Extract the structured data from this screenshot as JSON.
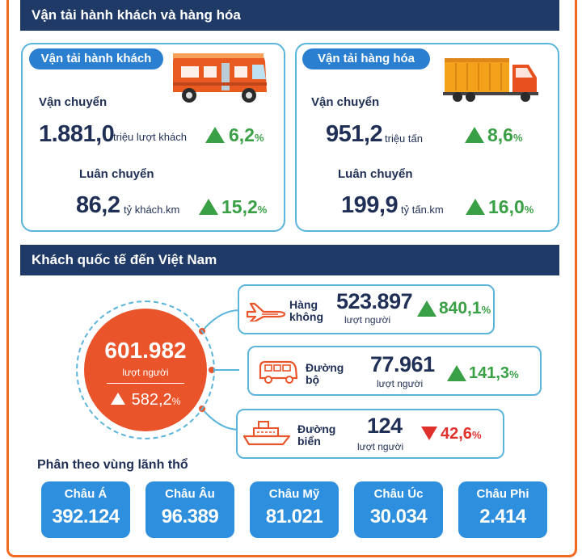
{
  "transport": {
    "header": "Vận tải hành khách và hàng hóa",
    "passenger": {
      "title": "Vận tải hành khách",
      "carried_label": "Vận chuyển",
      "carried_value": "1.881,0",
      "carried_unit": "triệu lượt khách",
      "carried_change": "6,2",
      "rotation_label": "Luân chuyển",
      "rotation_value": "86,2",
      "rotation_unit": "tỷ khách.km",
      "rotation_change": "15,2"
    },
    "cargo": {
      "title": "Vận tải hàng hóa",
      "carried_label": "Vận chuyển",
      "carried_value": "951,2",
      "carried_unit": "triệu tấn",
      "carried_change": "8,6",
      "rotation_label": "Luân chuyển",
      "rotation_value": "199,9",
      "rotation_unit": "tỷ tấn.km",
      "rotation_change": "16,0"
    },
    "pct_sign": "%"
  },
  "visitors": {
    "header": "Khách quốc tế đến Việt Nam",
    "total_value": "601.982",
    "total_unit": "lượt người",
    "total_change": "582,2",
    "modes": [
      {
        "name_line1": "Hàng",
        "name_line2": "không",
        "value": "523.897",
        "unit": "lượt người",
        "change": "840,1",
        "direction": "up",
        "icon": "airplane-icon"
      },
      {
        "name_line1": "Đường",
        "name_line2": "bộ",
        "value": "77.961",
        "unit": "lượt người",
        "change": "141,3",
        "direction": "up",
        "icon": "van-icon"
      },
      {
        "name_line1": "Đường",
        "name_line2": "biển",
        "value": "124",
        "unit": "lượt người",
        "change": "42,6",
        "direction": "down",
        "icon": "ship-icon"
      }
    ],
    "regions_title": "Phân theo vùng lãnh thổ",
    "regions": [
      {
        "name": "Châu Á",
        "value": "392.124"
      },
      {
        "name": "Châu Âu",
        "value": "96.389"
      },
      {
        "name": "Châu Mỹ",
        "value": "81.021"
      },
      {
        "name": "Châu Úc",
        "value": "30.034"
      },
      {
        "name": "Châu Phi",
        "value": "2.414"
      }
    ]
  },
  "colors": {
    "navy": "#1f3a66",
    "accent_orange": "#e9542a",
    "frame_orange": "#f26a21",
    "light_blue": "#5bb4dc",
    "pill_blue": "#2b7fd0",
    "region_blue": "#2e8fde",
    "up_green": "#3aa045",
    "down_red": "#e0302b"
  }
}
